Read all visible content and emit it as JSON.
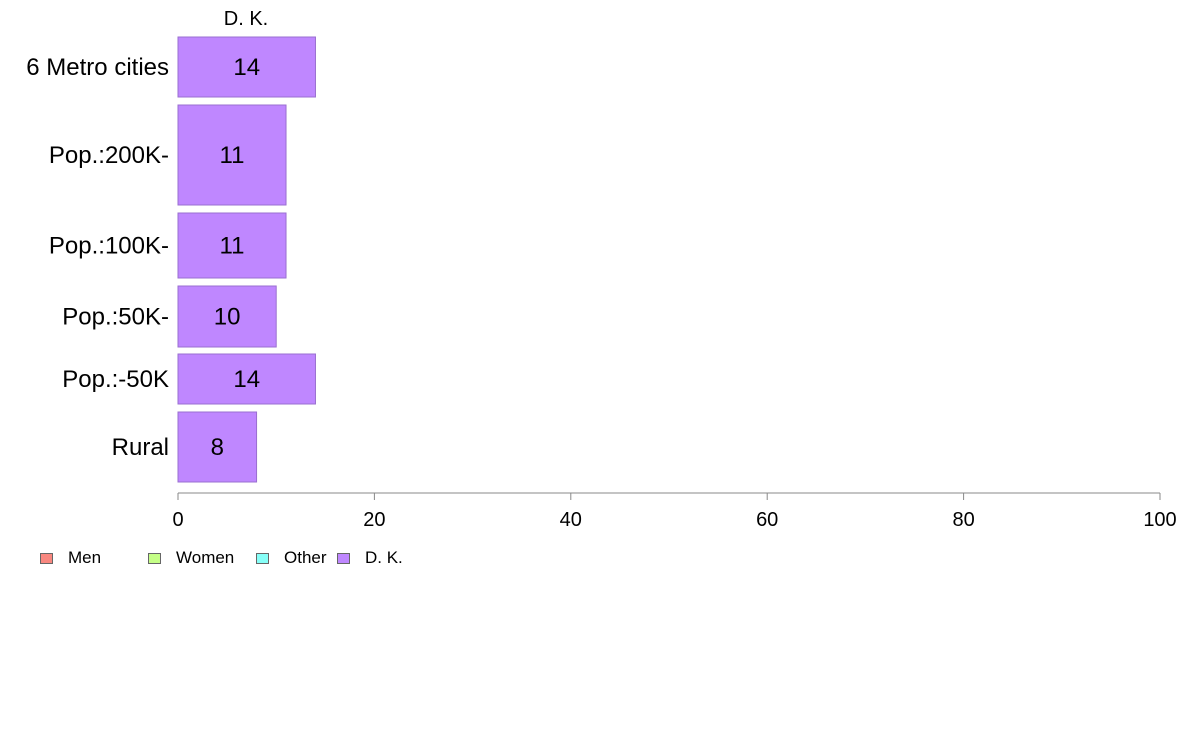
{
  "chart_data": {
    "type": "bar",
    "orientation": "horizontal",
    "title": "D. K.",
    "categories": [
      "6 Metro cities",
      "Pop.:200K-",
      "Pop.:100K-",
      "Pop.:50K-",
      "Pop.:-50K",
      "Rural"
    ],
    "series": [
      {
        "name": "D. K.",
        "values": [
          14,
          11,
          11,
          10,
          14,
          8
        ],
        "color": "#bf87ff"
      }
    ],
    "data_labels": [
      "14",
      "11",
      "11",
      "10",
      "14",
      "8"
    ],
    "xlim": [
      0,
      100
    ],
    "xticks": [
      0,
      20,
      40,
      60,
      80,
      100
    ],
    "xtick_labels": [
      "0",
      "20",
      "40",
      "60",
      "80",
      "100"
    ],
    "grid": false,
    "legend_position": "bottom-left",
    "legend": [
      {
        "label": "Men",
        "color": "#f8877f"
      },
      {
        "label": "Women",
        "color": "#c5ff87"
      },
      {
        "label": "Other",
        "color": "#87fff8"
      },
      {
        "label": "D. K.",
        "color": "#bf87ff"
      }
    ]
  }
}
